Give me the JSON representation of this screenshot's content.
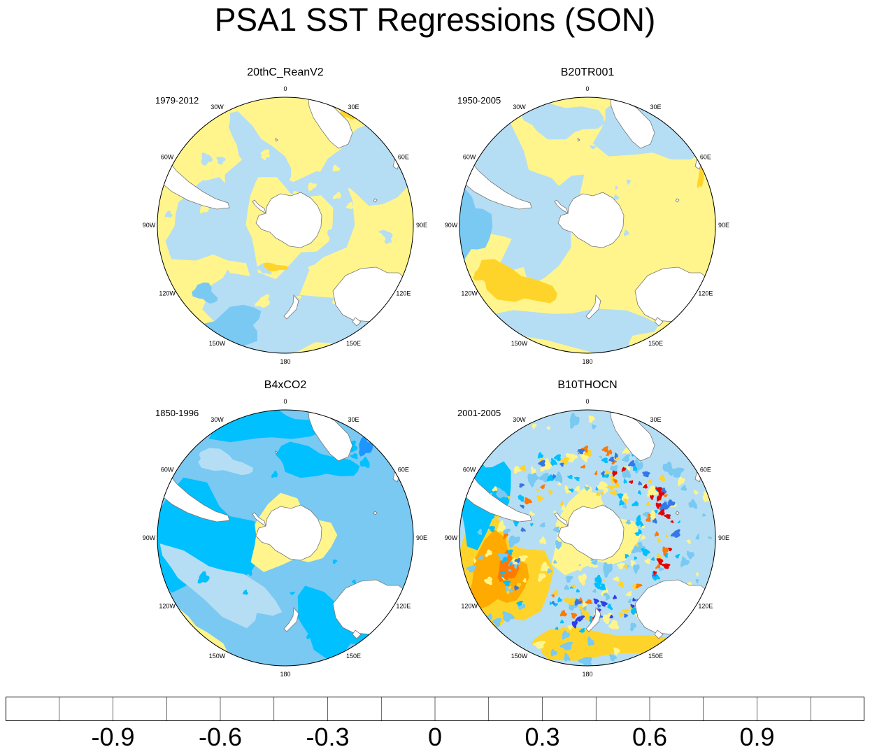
{
  "title": "PSA1 SST Regressions (SON)",
  "colors": {
    "coast": "#777777",
    "land": "#ffffff",
    "levels": [
      "#8a2be2",
      "#1a00ff",
      "#2e3ee9",
      "#3576e8",
      "#1e96ff",
      "#00c0ff",
      "#79c9f2",
      "#b5def4",
      "#fff58c",
      "#ffd42a",
      "#ffaa00",
      "#ff7800",
      "#ff2c00",
      "#e60000",
      "#cc1e1e",
      "#ffb4b4"
    ]
  },
  "longitude_labels": [
    "0",
    "30E",
    "60E",
    "90E",
    "120E",
    "150E",
    "180",
    "150W",
    "120W",
    "90W",
    "60W",
    "30W"
  ],
  "panels": [
    {
      "title": "20thC_ReanV2",
      "period": "1979-2012",
      "dominant_level": "0.0",
      "field": "weak positive anomalies (0 to 0.15) over mid-latitudes, weak negative (-0.15 to 0) near 30S and south of Australia"
    },
    {
      "title": "B20TR001",
      "period": "1950-2005",
      "dominant_level": "0.0",
      "field": "mostly 0 to 0.15, band 0.15 to 0.3 in South Pacific near 120W-150W"
    },
    {
      "title": "B4xCO2",
      "period": "1850-1996",
      "dominant_level": "-0.3",
      "field": "mostly -0.3 to -0.15, pockets -0.45 to -0.3, weak positive ring around Antarctica"
    },
    {
      "title": "B10THOCN",
      "period": "2001-2005",
      "dominant_level": "mixed",
      "field": "noisy field, strong positive 0.3 to 0.75 in South Pacific, ring of alternating extremes around 50S"
    }
  ],
  "chart_data": {
    "type": "heatmap",
    "title": "PSA1 SST Regressions (SON)",
    "projection": "south polar stereographic",
    "colorbar": {
      "levels": [
        -1.05,
        -0.9,
        -0.75,
        -0.6,
        -0.45,
        -0.3,
        -0.15,
        0,
        0.15,
        0.3,
        0.45,
        0.6,
        0.75,
        0.9,
        1.05
      ],
      "tick_labels": [
        "-0.9",
        "-0.6",
        "-0.3",
        "0",
        "0.3",
        "0.6",
        "0.9"
      ],
      "tick_values": [
        -0.9,
        -0.6,
        -0.3,
        0,
        0.3,
        0.6,
        0.9
      ]
    }
  }
}
